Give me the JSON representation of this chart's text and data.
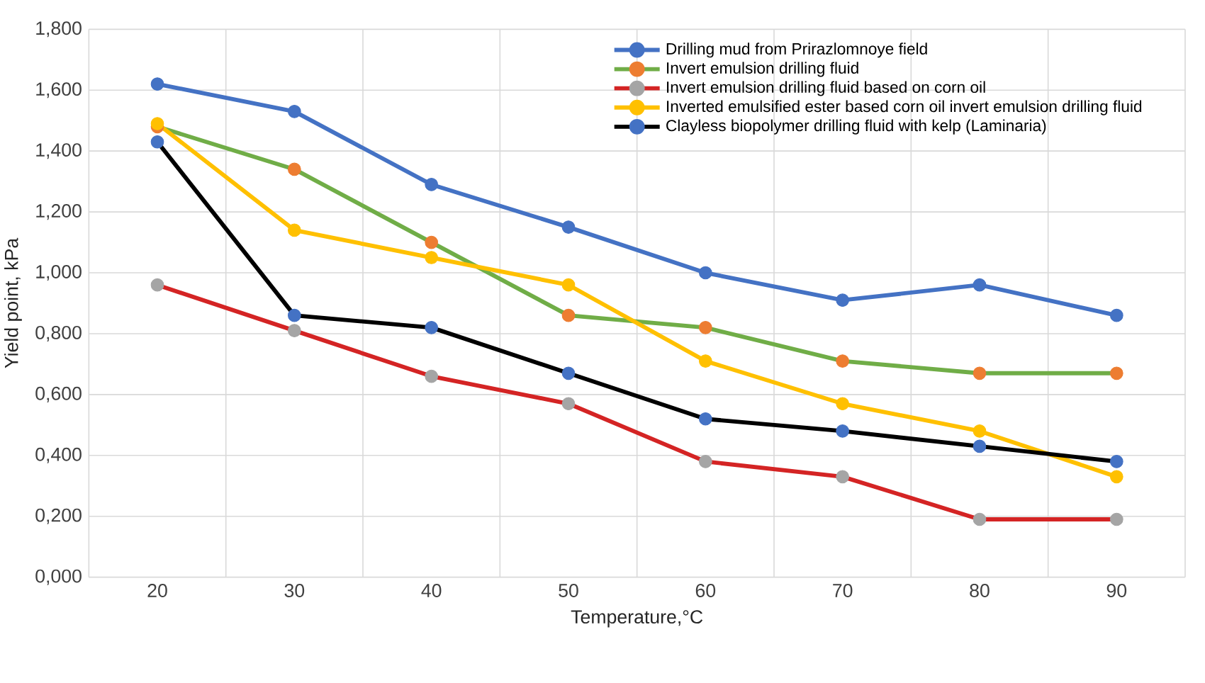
{
  "chart_data": {
    "type": "line",
    "xlabel": "Temperature,°C",
    "ylabel": "Yield point, kPa",
    "categories": [
      "20",
      "30",
      "40",
      "50",
      "60",
      "70",
      "80",
      "90"
    ],
    "ylim": [
      0,
      1.8
    ],
    "yticks": [
      {
        "value": 0,
        "label": "0,000"
      },
      {
        "value": 0.2,
        "label": "0,200"
      },
      {
        "value": 0.4,
        "label": "0,400"
      },
      {
        "value": 0.6,
        "label": "0,600"
      },
      {
        "value": 0.8,
        "label": "0,800"
      },
      {
        "value": 1.0,
        "label": "1,000"
      },
      {
        "value": 1.2,
        "label": "1,200"
      },
      {
        "value": 1.4,
        "label": "1,400"
      },
      {
        "value": 1.6,
        "label": "1,600"
      },
      {
        "value": 1.8,
        "label": "1,800"
      }
    ],
    "grid": true,
    "legend": "top right",
    "marker": "circle",
    "line_style": "solid",
    "series": [
      {
        "name": "Drilling mud from Prirazlomnoye field",
        "color": "#4472c4",
        "colors": [
          "#4472c4",
          "#4472c4",
          "#4472c4",
          "#4472c4",
          "#4472c4",
          "#4472c4",
          "#4472c4",
          "#4472c4"
        ],
        "values": [
          1.62,
          1.53,
          1.29,
          1.15,
          1.0,
          0.91,
          0.96,
          0.86
        ]
      },
      {
        "name": "Invert emulsion drilling fluid",
        "color": "#70ad47",
        "colors": [
          "#ed7d31",
          "#ed7d31",
          "#ed7d31",
          "#ed7d31",
          "#ed7d31",
          "#ed7d31",
          "#ed7d31",
          "#ed7d31"
        ],
        "values": [
          1.48,
          1.34,
          1.1,
          0.86,
          0.82,
          0.71,
          0.67,
          0.67
        ]
      },
      {
        "name": "Invert emulsion drilling fluid based on corn oil",
        "color": "#d42424",
        "colors": [
          "#a5a5a5",
          "#a5a5a5",
          "#a5a5a5",
          "#a5a5a5",
          "#a5a5a5",
          "#a5a5a5",
          "#a5a5a5",
          "#a5a5a5"
        ],
        "values": [
          0.96,
          0.81,
          0.66,
          0.57,
          0.38,
          0.33,
          0.19,
          0.19
        ]
      },
      {
        "name": "Inverted emulsified ester based corn oil invert emulsion drilling fluid",
        "color": "#ffc000",
        "colors": [
          "#ffc000",
          "#ffc000",
          "#ffc000",
          "#ffc000",
          "#ffc000",
          "#ffc000",
          "#ffc000",
          "#ffc000"
        ],
        "values": [
          1.49,
          1.14,
          1.05,
          0.96,
          0.71,
          0.57,
          0.48,
          0.33
        ]
      },
      {
        "name": "Clayless biopolymer drilling fluid with kelp (Laminaria)",
        "color": "#000000",
        "colors": [
          "#4472c4",
          "#4472c4",
          "#4472c4",
          "#4472c4",
          "#4472c4",
          "#4472c4",
          "#4472c4",
          "#4472c4"
        ],
        "values": [
          1.43,
          0.86,
          0.82,
          0.67,
          0.52,
          0.48,
          0.43,
          0.38
        ]
      }
    ]
  }
}
